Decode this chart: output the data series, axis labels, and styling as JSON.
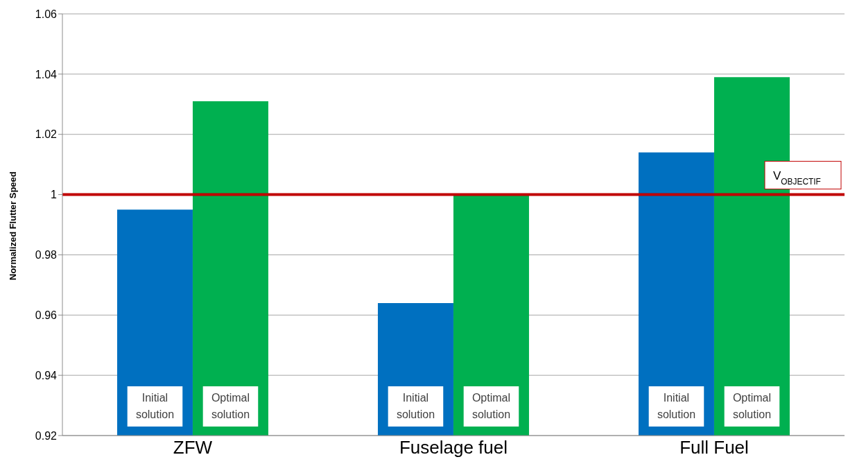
{
  "chart_data": {
    "type": "bar",
    "ylabel": "Normalized Flutter Speed",
    "categories": [
      "ZFW",
      "Fuselage fuel",
      "Full Fuel"
    ],
    "series": [
      {
        "name": "Initial solution",
        "color": "#0070c0",
        "values": [
          0.995,
          0.964,
          1.014
        ]
      },
      {
        "name": "Optimal solution",
        "color": "#00b050",
        "values": [
          1.031,
          1.0,
          1.039
        ]
      }
    ],
    "ylim": [
      0.92,
      1.06
    ],
    "yticks": [
      0.92,
      0.94,
      0.96,
      0.98,
      1,
      1.02,
      1.04,
      1.06
    ],
    "grid": "y",
    "legend": false,
    "ref_lines": [
      {
        "axis": "y",
        "value": 1,
        "label": "V$_{OBJECTIF}$",
        "color": "#c00000",
        "line_style": "solid"
      }
    ]
  }
}
